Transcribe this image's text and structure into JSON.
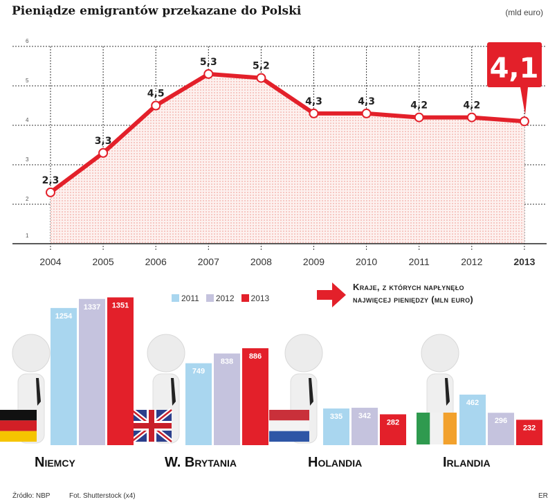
{
  "title": "Pieniądze emigrantów przekazane do Polski",
  "unit": "(mld euro)",
  "highlight_value": "4,1",
  "chart_data": [
    {
      "type": "line",
      "title": "Pieniądze emigrantów przekazane do Polski",
      "ylabel": "mld euro",
      "x": [
        "2004",
        "2005",
        "2006",
        "2007",
        "2008",
        "2009",
        "2010",
        "2011",
        "2012",
        "2013"
      ],
      "values": [
        2.3,
        3.3,
        4.5,
        5.3,
        5.2,
        4.3,
        4.3,
        4.2,
        4.2,
        4.1
      ],
      "labels": [
        "2,3",
        "3,3",
        "4,5",
        "5,3",
        "5,2",
        "4,3",
        "4,3",
        "4,2",
        "4,2",
        "4,1"
      ],
      "yticks": [
        "1",
        "2",
        "3",
        "4",
        "5",
        "6"
      ],
      "ylim": [
        1,
        6
      ],
      "grid": true,
      "highlight_category": "2013",
      "color": "#e3202a"
    },
    {
      "type": "bar",
      "title": "Kraje, z których napłynęło najwięcej pieniędzy (mln euro)",
      "categories": [
        "Niemcy",
        "W. Brytania",
        "Holandia",
        "Irlandia"
      ],
      "series": [
        {
          "name": "2011",
          "color": "#a9d6ef",
          "values": [
            1254,
            749,
            335,
            462
          ]
        },
        {
          "name": "2012",
          "color": "#c5c3de",
          "values": [
            1337,
            838,
            342,
            296
          ]
        },
        {
          "name": "2013",
          "color": "#e3202a",
          "values": [
            1351,
            886,
            282,
            232
          ]
        }
      ],
      "legend": "top-center"
    }
  ],
  "headline_line1": "Kraje, z których napłynęło",
  "headline_line2": "najwięcej pieniędzy (mln euro)",
  "footer": {
    "source": "Źródło: NBP",
    "photo": "Fot. Shutterstock (x4)",
    "author": "ER"
  }
}
